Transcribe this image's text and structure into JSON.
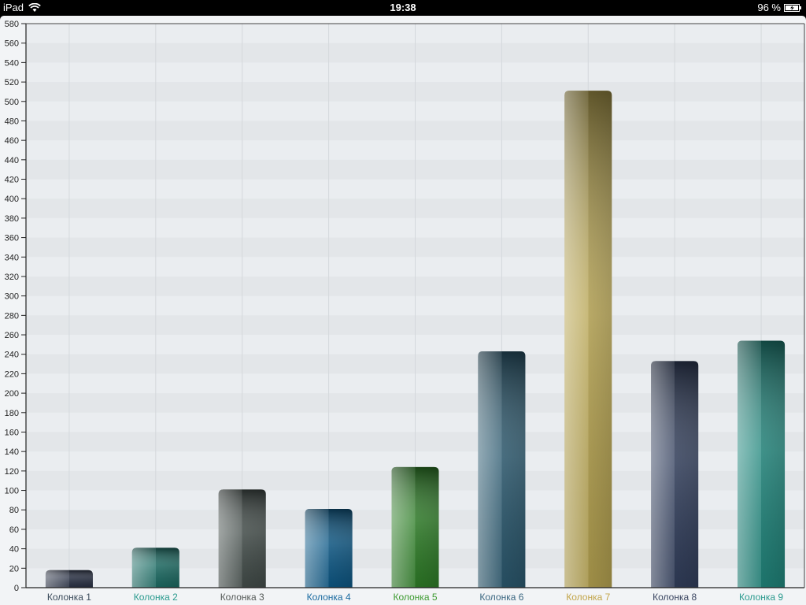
{
  "status_bar": {
    "device": "iPad",
    "time": "19:38",
    "battery": "96 %",
    "wifi_icon": "wifi-icon",
    "battery_icon": "battery-charging-icon"
  },
  "chart_data": {
    "type": "bar",
    "title": "",
    "xlabel": "",
    "ylabel": "",
    "ylim": [
      0,
      580
    ],
    "ytick_step": 20,
    "grid": "striped horizontal bands with vertical lines",
    "categories": [
      "Колонка 1",
      "Колонка 2",
      "Колонка 3",
      "Колонка 4",
      "Колонка 5",
      "Колонка 6",
      "Колонка 7",
      "Колонка 8",
      "Колонка 9"
    ],
    "values": [
      18,
      41,
      101,
      81,
      124,
      243,
      511,
      233,
      254
    ],
    "colors": [
      "#2a3246",
      "#1d6e66",
      "#454f4c",
      "#0e5a88",
      "#2f7f28",
      "#2c5a70",
      "#b8a552",
      "#33405e",
      "#21877d"
    ],
    "label_colors": [
      "#3a4a5a",
      "#2a9a8e",
      "#555a58",
      "#1a6aa0",
      "#3d9a30",
      "#3a6680",
      "#c2a448",
      "#3a4560",
      "#2a9a8e"
    ]
  }
}
